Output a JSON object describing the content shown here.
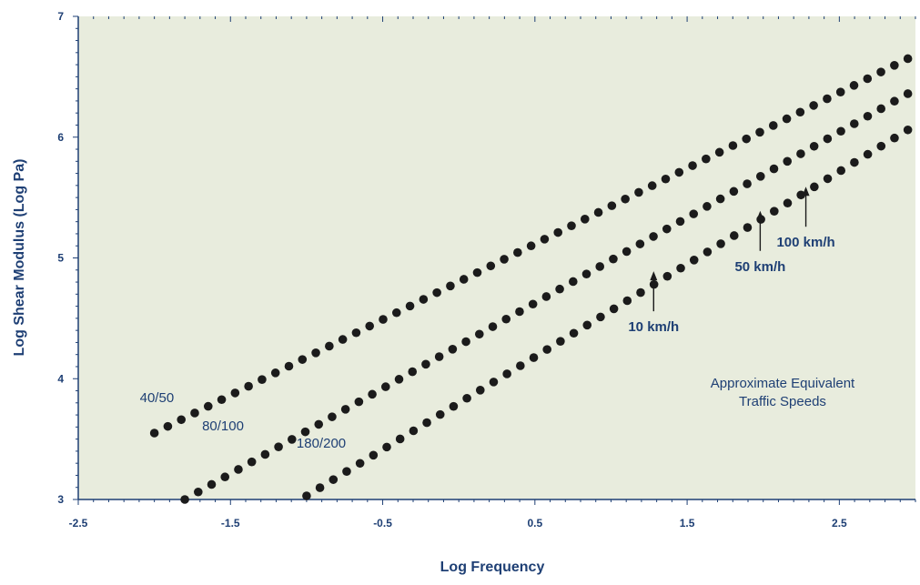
{
  "chart_data": {
    "type": "scatter",
    "xlabel": "Log Frequency",
    "ylabel": "Log Shear Modulus (Log Pa)",
    "xlim": [
      -2.5,
      3
    ],
    "ylim": [
      3,
      7
    ],
    "xticks": [
      "-2.5",
      "-1.5",
      "-0.5",
      "0.5",
      "1.5",
      "2.5"
    ],
    "xtick_values": [
      -2.5,
      -1.5,
      -0.5,
      0.5,
      1.5,
      2.5
    ],
    "yticks": [
      "3",
      "4",
      "5",
      "6",
      "7"
    ],
    "ytick_values": [
      3,
      4,
      5,
      6,
      7
    ],
    "grid": false,
    "series": [
      {
        "name": "40/50",
        "x_start": -2.0,
        "y_start": 3.55,
        "x_end": 2.95,
        "y_end": 6.65,
        "points": 57
      },
      {
        "name": "80/100",
        "x_start": -1.8,
        "y_start": 3.0,
        "x_end": 2.95,
        "y_end": 6.36,
        "points": 55
      },
      {
        "name": "180/200",
        "x_start": -1.0,
        "y_start": 3.03,
        "x_end": 2.95,
        "y_end": 6.06,
        "points": 46
      }
    ],
    "annotations": [
      {
        "text": "10 km/h",
        "x": 1.28,
        "y": 4.95
      },
      {
        "text": "50 km/h",
        "x": 1.98,
        "y": 5.45
      },
      {
        "text": "100 km/h",
        "x": 2.28,
        "y": 5.65
      }
    ],
    "note_lines": [
      "Approximate Equivalent",
      "Traffic Speeds"
    ],
    "colors": {
      "plot_background": "#e8ecdd",
      "marker": "#1b1b1b",
      "text": "#1e3f74",
      "axis": "#1e3f74"
    }
  }
}
